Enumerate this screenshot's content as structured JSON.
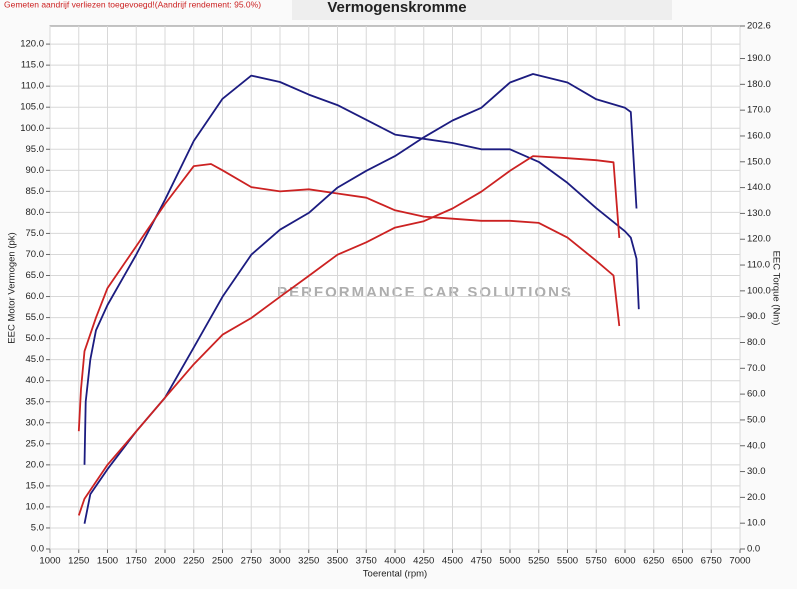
{
  "note_text": "Gemeten aandrijf verliezen toegevoegd!(Aandrijf rendement: 95.0%)",
  "watermark": "PERFORMANCE CAR SOLUTIONS",
  "chart_data": {
    "type": "line",
    "title": "Vermogenskromme",
    "xlabel": "Toerental (rpm)",
    "ylabel": "EEC Motor Vermogen (pk)",
    "y2label": "EEC Torque (Nm)",
    "xlim": [
      1000,
      7000
    ],
    "xticks": [
      1000,
      1250,
      1500,
      1750,
      2000,
      2250,
      2500,
      2750,
      3000,
      3250,
      3500,
      3750,
      4000,
      4250,
      4500,
      4750,
      5000,
      5250,
      5500,
      5750,
      6000,
      6250,
      6500,
      6750,
      7000
    ],
    "ylim": [
      0,
      124.3
    ],
    "yticks": [
      {
        "value": 0,
        "label": "0.0"
      },
      {
        "value": 5,
        "label": "5.0"
      },
      {
        "value": 10,
        "label": "10.0"
      },
      {
        "value": 15,
        "label": "15.0"
      },
      {
        "value": 20,
        "label": "20.0"
      },
      {
        "value": 25,
        "label": "25.0"
      },
      {
        "value": 30,
        "label": "30.0"
      },
      {
        "value": 35,
        "label": "35.0"
      },
      {
        "value": 40,
        "label": "40.0"
      },
      {
        "value": 45,
        "label": "45.0"
      },
      {
        "value": 50,
        "label": "50.0"
      },
      {
        "value": 55,
        "label": "55.0"
      },
      {
        "value": 60,
        "label": "60.0"
      },
      {
        "value": 65,
        "label": "65.0"
      },
      {
        "value": 70,
        "label": "70.0"
      },
      {
        "value": 75,
        "label": "75.0"
      },
      {
        "value": 80,
        "label": "80.0"
      },
      {
        "value": 85,
        "label": "85.0"
      },
      {
        "value": 90,
        "label": "90.0"
      },
      {
        "value": 95,
        "label": "95.0"
      },
      {
        "value": 100,
        "label": "100.0"
      },
      {
        "value": 105,
        "label": "105.0"
      },
      {
        "value": 110,
        "label": "110.0"
      },
      {
        "value": 115,
        "label": "115.0"
      },
      {
        "value": 120,
        "label": "120.0"
      }
    ],
    "y2lim": [
      0,
      202.6
    ],
    "y2ticks": [
      {
        "value": 0,
        "label": "0.0"
      },
      {
        "value": 10,
        "label": "10.0"
      },
      {
        "value": 20,
        "label": "20.0"
      },
      {
        "value": 30,
        "label": "30.0"
      },
      {
        "value": 40,
        "label": "40.0"
      },
      {
        "value": 50,
        "label": "50.0"
      },
      {
        "value": 60,
        "label": "60.0"
      },
      {
        "value": 70,
        "label": "70.0"
      },
      {
        "value": 80,
        "label": "80.0"
      },
      {
        "value": 90,
        "label": "90.0"
      },
      {
        "value": 100,
        "label": "100.0"
      },
      {
        "value": 110,
        "label": "110.0"
      },
      {
        "value": 120,
        "label": "120.0"
      },
      {
        "value": 130,
        "label": "130.0"
      },
      {
        "value": 140,
        "label": "140.0"
      },
      {
        "value": 150,
        "label": "150.0"
      },
      {
        "value": 160,
        "label": "160.0"
      },
      {
        "value": 170,
        "label": "170.0"
      },
      {
        "value": 180,
        "label": "180.0"
      },
      {
        "value": 190,
        "label": "190.0"
      },
      {
        "value": 202.6,
        "label": "202.6"
      }
    ],
    "grid": true,
    "series": [
      {
        "color": "#1c1c80",
        "x": [
          1300,
          1310,
          1350,
          1400,
          1500,
          1750,
          2000,
          2250,
          2500,
          2750,
          3000,
          3250,
          3500,
          3750,
          4000,
          4250,
          4500,
          4750,
          5000,
          5250,
          5500,
          5750,
          6000,
          6050,
          6100,
          6120
        ],
        "values": [
          20,
          35,
          45,
          52,
          58,
          70,
          83,
          97,
          107,
          112.5,
          111,
          108,
          105.5,
          102,
          98.5,
          97.5,
          96.5,
          95,
          95,
          92,
          87,
          81,
          75.5,
          74,
          69,
          57
        ]
      },
      {
        "color": "#cc2222",
        "x": [
          1250,
          1270,
          1300,
          1400,
          1500,
          1750,
          2000,
          2250,
          2400,
          2500,
          2750,
          3000,
          3250,
          3500,
          3750,
          4000,
          4250,
          4500,
          4750,
          5000,
          5250,
          5500,
          5750,
          5900,
          5950
        ],
        "values": [
          28,
          38,
          47,
          55,
          62,
          72,
          82,
          91,
          91.5,
          90,
          86,
          85,
          85.5,
          84.5,
          83.5,
          80.5,
          79,
          78.5,
          78,
          78,
          77.5,
          74,
          68.5,
          65,
          53
        ]
      },
      {
        "color": "#1c1c80",
        "axis": "y2",
        "x": [
          1300,
          1350,
          1500,
          1750,
          2000,
          2250,
          2500,
          2750,
          3000,
          3250,
          3500,
          3750,
          4000,
          4250,
          4500,
          4750,
          5000,
          5200,
          5500,
          5750,
          6000,
          6050,
          6100
        ],
        "values": [
          9.8,
          21.2,
          30.9,
          45.6,
          58.6,
          78.1,
          97.7,
          114,
          123.7,
          130.2,
          140,
          146.5,
          152.2,
          159.5,
          166,
          170.9,
          180.7,
          184,
          180.7,
          174.2,
          170.9,
          169.3,
          131.9
        ]
      },
      {
        "color": "#cc2222",
        "axis": "y2",
        "x": [
          1250,
          1300,
          1500,
          1750,
          2000,
          2250,
          2500,
          2750,
          3000,
          3250,
          3500,
          3750,
          4000,
          4250,
          4500,
          4750,
          5000,
          5200,
          5500,
          5750,
          5900,
          5950
        ],
        "values": [
          13,
          19.5,
          32.6,
          45.6,
          58.6,
          71.6,
          83,
          89.5,
          97.7,
          105.8,
          114,
          118.8,
          124.5,
          127,
          131.9,
          138.4,
          146.5,
          152.2,
          151.4,
          150.6,
          149.8,
          120.5
        ]
      }
    ]
  }
}
